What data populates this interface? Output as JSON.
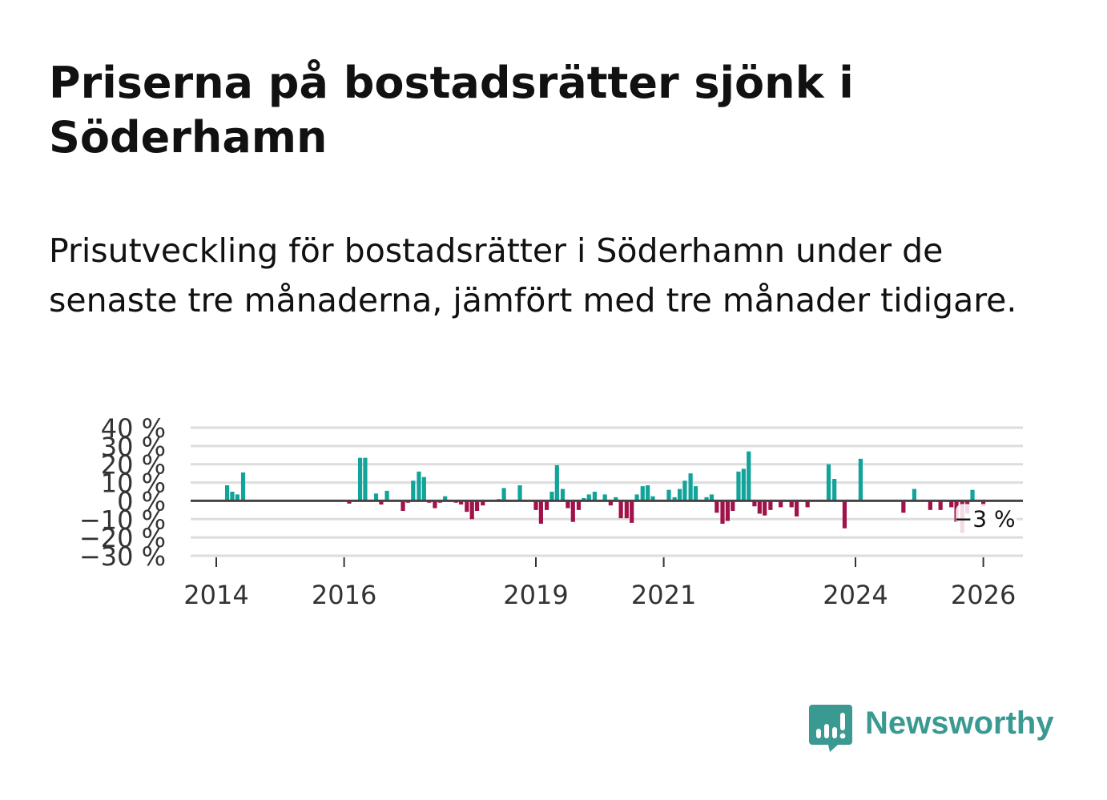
{
  "title": "Priserna på bostadsrätter sjönk i Söderhamn",
  "subtitle": "Prisutveckling för bostadsrätter i Söderhamn under de senaste tre månaderna, jämfört med tre månader tidigare.",
  "brand": {
    "name": "Newsworthy",
    "icon": "newsworthy-chat-chart-icon"
  },
  "colors": {
    "positive": "#12a39a",
    "negative": "#a0124a",
    "grid": "#dddddd",
    "zero": "#444444",
    "text": "#333333",
    "brand": "#3a9a92"
  },
  "chart_data": {
    "type": "bar",
    "title": "Priserna på bostadsrätter sjönk i Söderhamn",
    "xlabel": "",
    "ylabel": "",
    "ylim": [
      -30,
      40
    ],
    "yticks": [
      40,
      30,
      20,
      10,
      0,
      -10,
      -20,
      -30
    ],
    "ytick_labels": [
      "40 %",
      "30 %",
      "20 %",
      "10 %",
      "0 %",
      "−10 %",
      "−20 %",
      "−30 %"
    ],
    "xticks": [
      2014,
      2016,
      2019,
      2021,
      2024,
      2026
    ],
    "x_unit": "year",
    "annotation": {
      "text": "−3 %",
      "year": 2025.92,
      "value": -3
    },
    "points": [
      [
        2014.17,
        8.5
      ],
      [
        2014.25,
        5
      ],
      [
        2014.33,
        3.5
      ],
      [
        2014.42,
        15.5
      ],
      [
        2016.08,
        -1.5
      ],
      [
        2016.25,
        23.5
      ],
      [
        2016.33,
        23.5
      ],
      [
        2016.5,
        4
      ],
      [
        2016.58,
        -2
      ],
      [
        2016.67,
        5.5
      ],
      [
        2016.92,
        -5.5
      ],
      [
        2017.0,
        -1
      ],
      [
        2017.08,
        11
      ],
      [
        2017.17,
        16
      ],
      [
        2017.25,
        13
      ],
      [
        2017.33,
        -1
      ],
      [
        2017.42,
        -4
      ],
      [
        2017.5,
        -1
      ],
      [
        2017.58,
        2.5
      ],
      [
        2017.67,
        -0.5
      ],
      [
        2017.75,
        -1
      ],
      [
        2017.83,
        -2
      ],
      [
        2017.92,
        -6
      ],
      [
        2018.0,
        -10
      ],
      [
        2018.08,
        -5.5
      ],
      [
        2018.17,
        -2.5
      ],
      [
        2018.42,
        1
      ],
      [
        2018.5,
        7
      ],
      [
        2018.75,
        8.5
      ],
      [
        2019.0,
        -5
      ],
      [
        2019.08,
        -12.5
      ],
      [
        2019.17,
        -5
      ],
      [
        2019.25,
        5
      ],
      [
        2019.33,
        19.5
      ],
      [
        2019.42,
        6.5
      ],
      [
        2019.5,
        -4
      ],
      [
        2019.58,
        -11.5
      ],
      [
        2019.67,
        -5
      ],
      [
        2019.75,
        1.5
      ],
      [
        2019.83,
        3.5
      ],
      [
        2019.92,
        5
      ],
      [
        2020.0,
        -0.5
      ],
      [
        2020.08,
        3.5
      ],
      [
        2020.17,
        -2.5
      ],
      [
        2020.25,
        2
      ],
      [
        2020.33,
        -9.5
      ],
      [
        2020.42,
        -9.5
      ],
      [
        2020.5,
        -12
      ],
      [
        2020.58,
        3.5
      ],
      [
        2020.67,
        8
      ],
      [
        2020.75,
        8.5
      ],
      [
        2020.83,
        2.5
      ],
      [
        2021.08,
        6
      ],
      [
        2021.17,
        2
      ],
      [
        2021.25,
        6.5
      ],
      [
        2021.33,
        11
      ],
      [
        2021.42,
        15
      ],
      [
        2021.5,
        8
      ],
      [
        2021.67,
        2
      ],
      [
        2021.75,
        3.5
      ],
      [
        2021.83,
        -6.5
      ],
      [
        2021.92,
        -12.5
      ],
      [
        2022.0,
        -11
      ],
      [
        2022.08,
        -5.5
      ],
      [
        2022.17,
        16
      ],
      [
        2022.25,
        17.5
      ],
      [
        2022.33,
        27
      ],
      [
        2022.42,
        -3
      ],
      [
        2022.5,
        -7
      ],
      [
        2022.58,
        -8
      ],
      [
        2022.67,
        -5
      ],
      [
        2022.83,
        -3.5
      ],
      [
        2023.0,
        -3.5
      ],
      [
        2023.08,
        -8.5
      ],
      [
        2023.25,
        -3.5
      ],
      [
        2023.58,
        20
      ],
      [
        2023.67,
        12
      ],
      [
        2023.83,
        -15
      ],
      [
        2024.08,
        23
      ],
      [
        2024.75,
        -6.5
      ],
      [
        2024.92,
        6.5
      ],
      [
        2025.17,
        -5
      ],
      [
        2025.33,
        -5
      ],
      [
        2025.5,
        -3.5
      ],
      [
        2025.58,
        -11.5
      ],
      [
        2025.67,
        -17.5
      ],
      [
        2025.75,
        -7
      ],
      [
        2025.83,
        6
      ],
      [
        2026.0,
        -3
      ]
    ]
  }
}
